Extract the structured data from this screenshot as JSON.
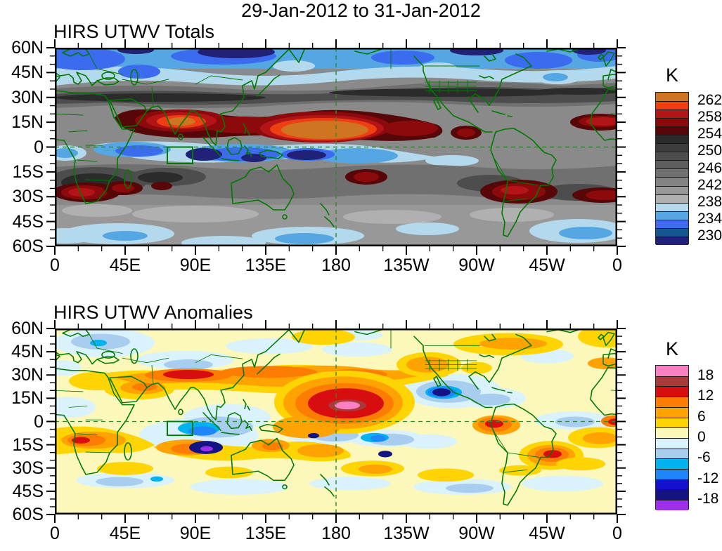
{
  "title": "29-Jan-2012 to 31-Jan-2012",
  "axes": {
    "lat_labels": [
      "60N",
      "45N",
      "30N",
      "15N",
      "0",
      "15S",
      "30S",
      "45S",
      "60S"
    ],
    "lon_labels": [
      "0",
      "45E",
      "90E",
      "135E",
      "180",
      "135W",
      "90W",
      "45W",
      "0"
    ]
  },
  "panels": [
    {
      "title": "HIRS UTWV Totals",
      "colorbar": {
        "title": "K",
        "labels": [
          "262",
          "258",
          "254",
          "250",
          "246",
          "242",
          "238",
          "234",
          "230"
        ],
        "colors": [
          "#cf7420",
          "#ee3f12",
          "#b31418",
          "#8c0a0c",
          "#570708",
          "#2b2b2b",
          "#3c3c3c",
          "#4d4d4d",
          "#5e5e5e",
          "#707070",
          "#838383",
          "#989898",
          "#b0b0b0",
          "#b5d9ec",
          "#55a7e3",
          "#3b6cf0",
          "#15568f",
          "#202177"
        ]
      }
    },
    {
      "title": "HIRS UTWV Anomalies",
      "colorbar": {
        "title": "K",
        "labels": [
          "18",
          "12",
          "6",
          "0",
          "-6",
          "-12",
          "-18"
        ],
        "colors": [
          "#fa7fc3",
          "#a93a3a",
          "#d80d10",
          "#fd7d02",
          "#fea302",
          "#ffd403",
          "#fcf8bc",
          "#d9f2fc",
          "#a8cdef",
          "#00b2ee",
          "#1f86fa",
          "#1410cf",
          "#151284",
          "#9c30ea"
        ]
      }
    }
  ],
  "overlay_colors": {
    "coastline_green": "#007a00",
    "dashed_line_green": "#2d8a2d"
  },
  "chart_data": [
    {
      "type": "heatmap",
      "subtype": "filled_contour_world_map",
      "title": "HIRS UTWV Totals",
      "units": "K",
      "projection": "equirectangular",
      "lon_range_deg": [
        0,
        360
      ],
      "lat_range_deg": [
        -60,
        60
      ],
      "x_tick_labels": [
        "0",
        "45E",
        "90E",
        "135E",
        "180",
        "135W",
        "90W",
        "45W",
        "0"
      ],
      "y_tick_labels": [
        "60N",
        "45N",
        "30N",
        "15N",
        "0",
        "15S",
        "30S",
        "45S",
        "60S"
      ],
      "contour_levels_k": [
        230,
        232,
        234,
        236,
        238,
        240,
        242,
        244,
        246,
        248,
        250,
        252,
        254,
        256,
        258,
        260,
        262
      ],
      "colorbar_tick_labels_k": [
        262,
        258,
        254,
        250,
        246,
        242,
        238,
        234,
        230
      ],
      "palette_high_to_low": [
        "#cf7420",
        "#ee3f12",
        "#b31418",
        "#8c0a0c",
        "#570708",
        "#2b2b2b",
        "#3c3c3c",
        "#4d4d4d",
        "#5e5e5e",
        "#707070",
        "#838383",
        "#989898",
        "#b0b0b0",
        "#b5d9ec",
        "#55a7e3",
        "#3b6cf0",
        "#15568f",
        "#202177"
      ],
      "grid": "off",
      "legend_position": "right",
      "overlays": [
        "green coastlines and borders",
        "dashed meridian at 180",
        "dashed equator line",
        "green study box ~72E-88E, 0-10S"
      ],
      "notable_features": [
        {
          "value_k": ">262",
          "location": "central Pacific ~165E-155W, 3-20N (large orange core)"
        },
        {
          "value_k": "258-262",
          "location": "northern India / Bay of Bengal ~15-25N"
        },
        {
          "value_k": "256-260",
          "location": "tropical Atlantic near 20W-0, 5-15N"
        },
        {
          "value_k": "<232",
          "location": "equatorial Indian Ocean and west Pacific 0-10S (navy cores)"
        },
        {
          "value_k": "250-256",
          "location": "zonal dark band 30-40N"
        },
        {
          "value_k": "256-260",
          "location": "southern Africa ~15-35E, 25-35S and Peru/Brazil ~80-55W, 15-30S"
        },
        {
          "value_k": "232-238",
          "location": "zonal blue band 50-60N"
        },
        {
          "value_k": "238-242",
          "location": "southern mid-latitudes 40-60S grays with pale blue patches"
        }
      ]
    },
    {
      "type": "heatmap",
      "subtype": "filled_contour_world_map",
      "title": "HIRS UTWV Anomalies",
      "units": "K",
      "projection": "equirectangular",
      "lon_range_deg": [
        0,
        360
      ],
      "lat_range_deg": [
        -60,
        60
      ],
      "x_tick_labels": [
        "0",
        "45E",
        "90E",
        "135E",
        "180",
        "135W",
        "90W",
        "45W",
        "0"
      ],
      "y_tick_labels": [
        "60N",
        "45N",
        "30N",
        "15N",
        "0",
        "15S",
        "30S",
        "45S",
        "60S"
      ],
      "contour_levels_k": [
        -18,
        -15,
        -12,
        -9,
        -6,
        -3,
        0,
        3,
        6,
        9,
        12,
        15,
        18
      ],
      "colorbar_tick_labels_k": [
        18,
        12,
        6,
        0,
        -6,
        -12,
        -18
      ],
      "palette_high_to_low": [
        "#fa7fc3",
        "#a93a3a",
        "#d80d10",
        "#fd7d02",
        "#fea302",
        "#ffd403",
        "#fcf8bc",
        "#d9f2fc",
        "#a8cdef",
        "#00b2ee",
        "#1f86fa",
        "#1410cf",
        "#151284",
        "#9c30ea"
      ],
      "grid": "off",
      "legend_position": "right",
      "overlays": [
        "green coastlines and borders",
        "dashed meridian at 180",
        "dashed equator line",
        "green study box ~72E-88E, 0-10S"
      ],
      "notable_features": [
        {
          "value_k": ">+18",
          "location": "pink core central Pacific ~175E-165W, 0-10N inside +12..+18 dark red blob"
        },
        {
          "value_k": "+12..+18",
          "location": "band over N India / Tibet ~70-95E, 25-32N extending across E Asia"
        },
        {
          "value_k": "+6..+9",
          "location": "western North America, NE Atlantic, central Australia, SE Pacific wave"
        },
        {
          "value_k": "+9..+12",
          "location": "Ecuador coast ~80W equator and SE Brazil ~50W, 20S"
        },
        {
          "value_k": "-12..-21",
          "location": "SE Indian Ocean ~85-100E, 12-20S navy blob with purple <-18 spot"
        },
        {
          "value_k": "-6..-9",
          "location": "equatorial Indian Ocean cyan, SW Pacific band 3-12S, Mexico west coast navy spot"
        },
        {
          "value_k": "-3..0",
          "location": "pale blue mottling over Europe, E Pacific, S mid-latitudes"
        },
        {
          "value_k": "0..+3",
          "location": "pale yellow background elsewhere"
        }
      ]
    }
  ]
}
